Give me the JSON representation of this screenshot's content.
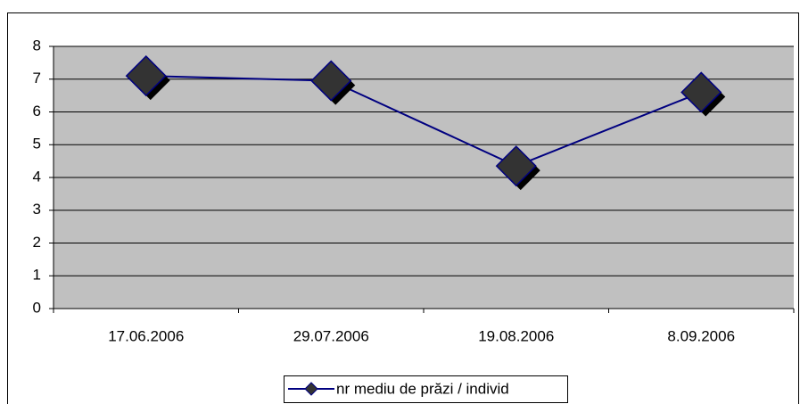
{
  "chart_data": {
    "type": "line",
    "categories": [
      "17.06.2006",
      "29.07.2006",
      "19.08.2006",
      "8.09.2006"
    ],
    "series": [
      {
        "name": "nr mediu de prăzi / individ",
        "color": "#000080",
        "marker_color": "#333333",
        "values": [
          7.1,
          6.95,
          4.35,
          6.6
        ]
      }
    ],
    "ylim": [
      0,
      8
    ],
    "yticks": [
      0,
      1,
      2,
      3,
      4,
      5,
      6,
      7,
      8
    ],
    "grid": true,
    "legend": "bottom"
  }
}
